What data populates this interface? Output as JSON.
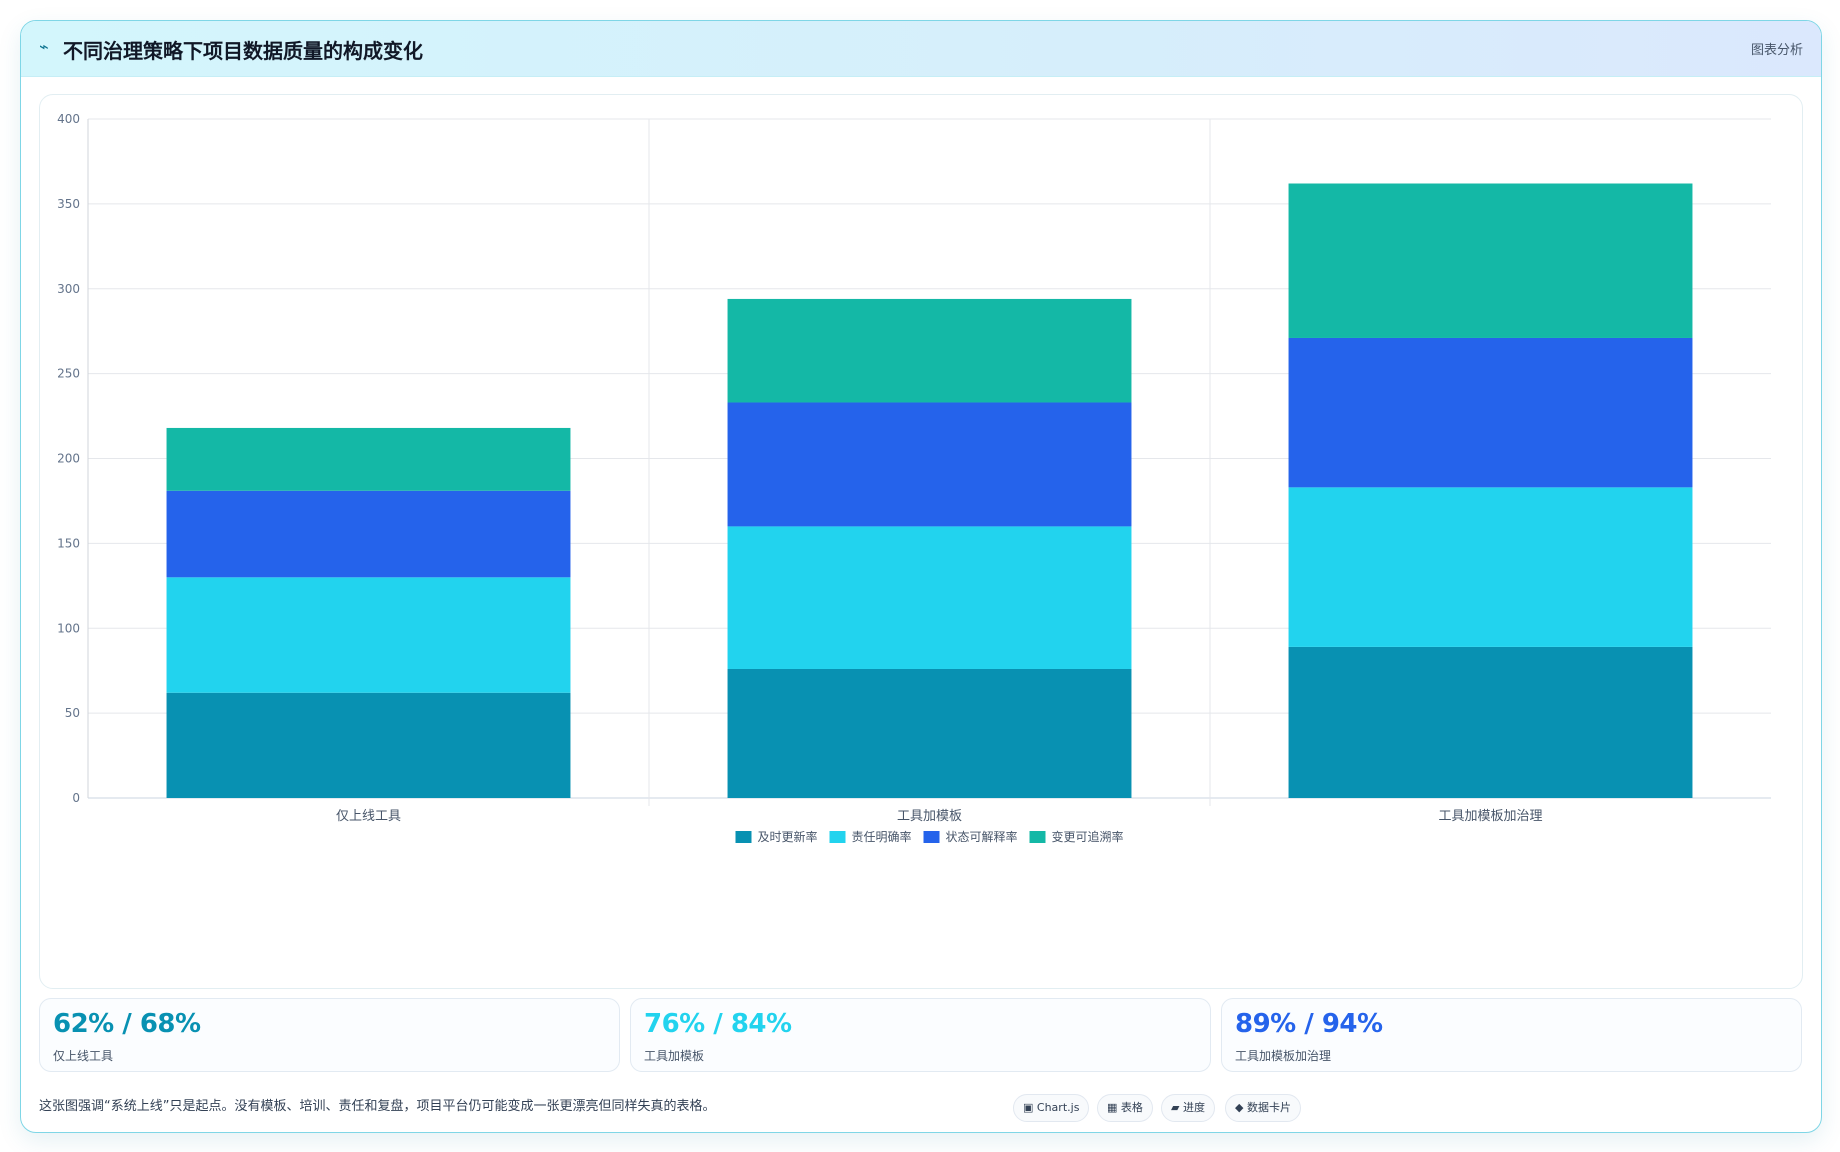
{
  "header": {
    "icon": "pulse-icon",
    "title": "不同治理策略下项目数据质量的构成变化",
    "analysis_label": "图表分析"
  },
  "chart_data": {
    "type": "bar",
    "stacked": true,
    "categories": [
      "仅上线工具",
      "工具加模板",
      "工具加模板加治理"
    ],
    "series": [
      {
        "name": "及时更新率",
        "color": "#0891b2",
        "values": [
          62,
          76,
          89
        ]
      },
      {
        "name": "责任明确率",
        "color": "#22d3ee",
        "values": [
          68,
          84,
          94
        ]
      },
      {
        "name": "状态可解释率",
        "color": "#2563eb",
        "values": [
          51,
          73,
          88
        ]
      },
      {
        "name": "变更可追溯率",
        "color": "#14b8a6",
        "values": [
          37,
          61,
          91
        ]
      }
    ],
    "ylim": [
      0,
      400
    ],
    "yticks": [
      0,
      50,
      100,
      150,
      200,
      250,
      300,
      350,
      400
    ],
    "grid": true,
    "legend": "bottom"
  },
  "stats": [
    {
      "value": "62% / 68%",
      "label": "仅上线工具",
      "color": "#0891b2"
    },
    {
      "value": "76% / 84%",
      "label": "工具加模板",
      "color": "#22d3ee"
    },
    {
      "value": "89% / 94%",
      "label": "工具加模板加治理",
      "color": "#2563eb"
    }
  ],
  "footer": {
    "note": "这张图强调“系统上线”只是起点。没有模板、培训、责任和复盘，项目平台仍可能变成一张更漂亮但同样失真的表格。",
    "badges": [
      {
        "icon": "square-icon",
        "glyph": "▣",
        "label": "Chart.js"
      },
      {
        "icon": "table-icon",
        "glyph": "▦",
        "label": "表格"
      },
      {
        "icon": "progress-icon",
        "glyph": "▰",
        "label": "进度"
      },
      {
        "icon": "diamond-icon",
        "glyph": "◆",
        "label": "数据卡片"
      }
    ]
  }
}
